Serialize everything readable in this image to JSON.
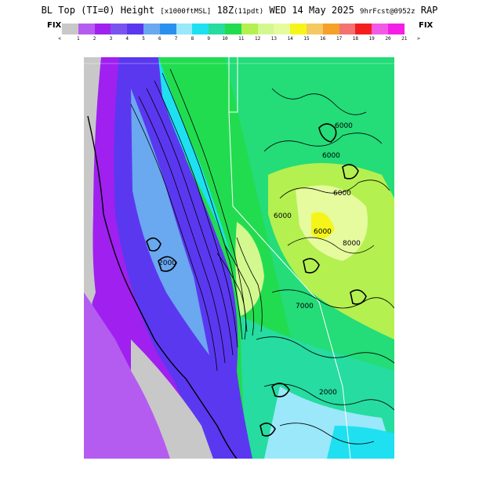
{
  "title": {
    "main": "BL Top (TI=0) Height",
    "units": "[x1000ftMSL]",
    "time": "18Z",
    "time_note": "(11pdt)",
    "date": "WED 14 May 2025",
    "forecast": "9hrFcst@0952z",
    "model": "RAP"
  },
  "fix_left": "FIX",
  "fix_right": "FIX",
  "color_scale": {
    "colors": [
      "#c8c8c8",
      "#b45cf0",
      "#a020f0",
      "#7b54f0",
      "#5a38f0",
      "#6aa8f0",
      "#2a90f0",
      "#9ae8fa",
      "#1ee0f0",
      "#26dca0",
      "#22dc50",
      "#b4f050",
      "#d4f890",
      "#e6fa9e",
      "#f5f51a",
      "#f5c862",
      "#f5a028",
      "#f57272",
      "#f51e1e",
      "#f25ae6",
      "#f51ee6"
    ],
    "labels": [
      "<",
      "1",
      "2",
      "3",
      "4",
      "5",
      "6",
      "7",
      "8",
      "9",
      "10",
      "11",
      "12",
      "13",
      "14",
      "15",
      "16",
      "17",
      "18",
      "19",
      "20",
      "21",
      ">"
    ]
  },
  "contour_labels": [
    "6000",
    "6000",
    "6000",
    "8000",
    "6000",
    "6000",
    "7000",
    "2000",
    "2000"
  ],
  "map": {
    "ocean_color": "#c8c8c8",
    "border_color": "#ffffff",
    "contour_color": "#000000"
  }
}
